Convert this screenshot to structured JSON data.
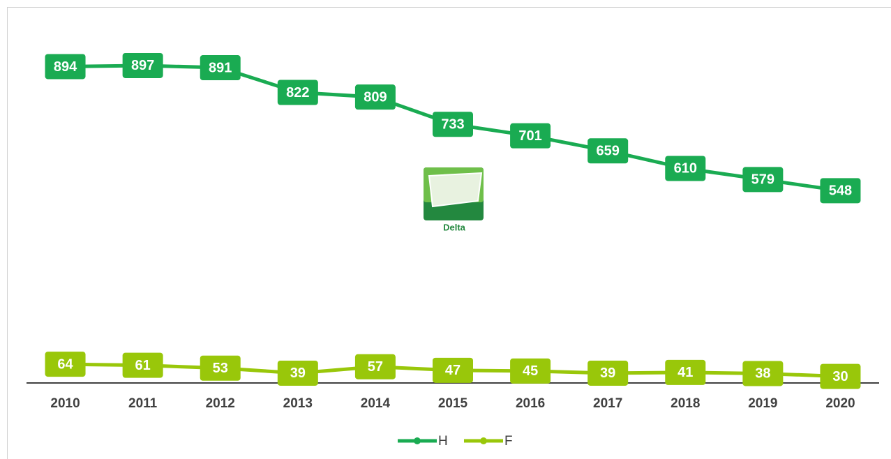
{
  "chart_data": {
    "type": "line",
    "categories": [
      "2010",
      "2011",
      "2012",
      "2013",
      "2014",
      "2015",
      "2016",
      "2017",
      "2018",
      "2019",
      "2020"
    ],
    "series": [
      {
        "name": "H",
        "color": "#1aab52",
        "values": [
          894,
          897,
          891,
          822,
          809,
          733,
          701,
          659,
          610,
          579,
          548
        ]
      },
      {
        "name": "F",
        "color": "#99c70a",
        "values": [
          64,
          61,
          53,
          39,
          57,
          47,
          45,
          39,
          41,
          38,
          30
        ]
      }
    ],
    "ylim": [
      0,
      1000
    ],
    "legend": "bottom",
    "watermark": "Delta"
  }
}
